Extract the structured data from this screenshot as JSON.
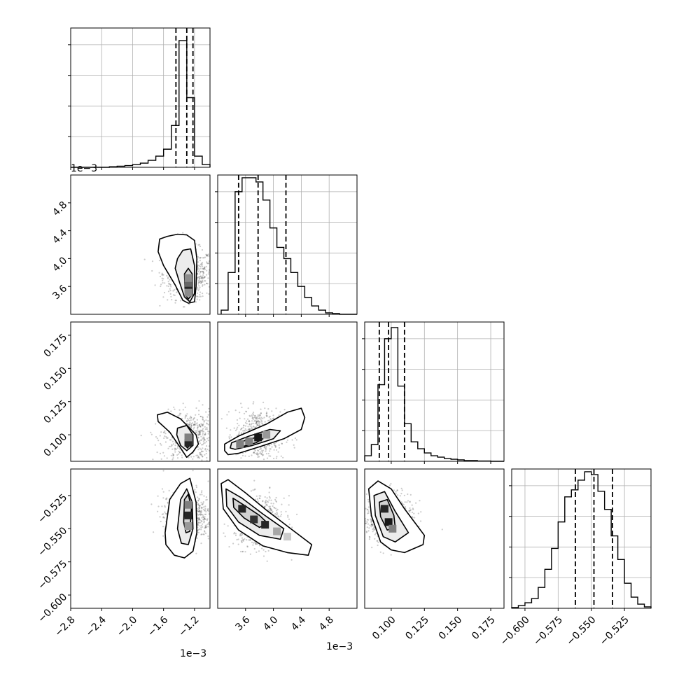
{
  "figure": {
    "type": "corner_plot",
    "offset_labels": {
      "p0": "1e−3",
      "p1": "1e−3"
    },
    "colors": {
      "line": "#000000",
      "grid": "#b0b0b0",
      "scatter": "#333333",
      "quantile": "#000000"
    }
  },
  "chart_data": [
    {
      "type": "histogram",
      "panel": "p0",
      "x_tick_labels": [
        "−2.8",
        "−2.4",
        "−2.0",
        "−1.6",
        "−1.2"
      ],
      "x_ticks": [
        -2.8,
        -2.4,
        -2.0,
        -1.6,
        -1.2
      ],
      "xlim": [
        -2.8,
        -1.0
      ],
      "bins": [
        -2.8,
        -2.7,
        -2.6,
        -2.5,
        -2.4,
        -2.3,
        -2.2,
        -2.1,
        -2.0,
        -1.9,
        -1.8,
        -1.7,
        -1.6,
        -1.5,
        -1.4,
        -1.3,
        -1.2,
        -1.1,
        -1.0
      ],
      "values": [
        0,
        0,
        0,
        0,
        0,
        0.004,
        0.008,
        0.012,
        0.02,
        0.03,
        0.05,
        0.08,
        0.13,
        0.3,
        0.91,
        0.5,
        0.08,
        0.02,
        0
      ],
      "quantiles": [
        -1.44,
        -1.3,
        -1.22
      ],
      "grid": true
    },
    {
      "type": "histogram",
      "panel": "p1",
      "x_tick_labels": [
        "3.6",
        "4.0",
        "4.4",
        "4.8"
      ],
      "x_ticks": [
        3.6,
        4.0,
        4.4,
        4.8
      ],
      "xlim": [
        3.2,
        5.2
      ],
      "bins": [
        3.25,
        3.35,
        3.45,
        3.55,
        3.65,
        3.75,
        3.85,
        3.95,
        4.05,
        4.15,
        4.25,
        4.35,
        4.45,
        4.55,
        4.65,
        4.75,
        4.85,
        4.95
      ],
      "values": [
        0.03,
        0.3,
        0.88,
        0.98,
        0.98,
        0.95,
        0.82,
        0.62,
        0.48,
        0.4,
        0.3,
        0.2,
        0.12,
        0.06,
        0.03,
        0.01,
        0.005,
        0
      ],
      "quantiles": [
        3.5,
        3.78,
        4.18
      ],
      "grid": true
    },
    {
      "type": "histogram",
      "panel": "p2",
      "x_tick_labels": [
        "0.100",
        "0.125",
        "0.150",
        "0.175"
      ],
      "x_ticks": [
        0.1,
        0.125,
        0.15,
        0.175
      ],
      "xlim": [
        0.08,
        0.185
      ],
      "bins": [
        0.08,
        0.085,
        0.09,
        0.095,
        0.1,
        0.105,
        0.11,
        0.115,
        0.12,
        0.125,
        0.13,
        0.135,
        0.14,
        0.145,
        0.15,
        0.155,
        0.16,
        0.165,
        0.17,
        0.175,
        0.18
      ],
      "values": [
        0.04,
        0.12,
        0.55,
        0.88,
        0.96,
        0.54,
        0.27,
        0.14,
        0.09,
        0.06,
        0.04,
        0.03,
        0.02,
        0.015,
        0.01,
        0.005,
        0.005,
        0.002,
        0.002,
        0
      ],
      "quantiles": [
        0.091,
        0.098,
        0.11
      ],
      "grid": true
    },
    {
      "type": "histogram",
      "panel": "p3",
      "x_tick_labels": [
        "−0.600",
        "−0.575",
        "−0.550",
        "−0.525"
      ],
      "x_ticks": [
        -0.6,
        -0.575,
        -0.55,
        -0.525
      ],
      "xlim": [
        -0.61,
        -0.505
      ],
      "bins": [
        -0.61,
        -0.605,
        -0.6,
        -0.595,
        -0.59,
        -0.585,
        -0.58,
        -0.575,
        -0.57,
        -0.565,
        -0.56,
        -0.555,
        -0.55,
        -0.545,
        -0.54,
        -0.535,
        -0.53,
        -0.525,
        -0.52,
        -0.515,
        -0.51,
        -0.505
      ],
      "values": [
        0.005,
        0.02,
        0.04,
        0.07,
        0.15,
        0.28,
        0.43,
        0.62,
        0.8,
        0.85,
        0.92,
        0.98,
        0.96,
        0.84,
        0.71,
        0.52,
        0.35,
        0.18,
        0.08,
        0.03,
        0.01
      ],
      "quantiles": [
        -0.562,
        -0.548,
        -0.534
      ],
      "grid": true
    },
    {
      "type": "scatter",
      "panel": "d10",
      "y_tick_labels": [
        "3.6",
        "4.0",
        "4.4",
        "4.8"
      ],
      "y_ticks": [
        3.6,
        4.0,
        4.4,
        4.8
      ],
      "xlim": [
        -2.8,
        -1.0
      ],
      "ylim": [
        3.2,
        5.2
      ],
      "center": [
        -1.28,
        3.78
      ],
      "contours": [
        [
          [
            -1.65,
            4.28
          ],
          [
            -1.55,
            4.32
          ],
          [
            -1.42,
            4.35
          ],
          [
            -1.3,
            4.34
          ],
          [
            -1.2,
            4.26
          ],
          [
            -1.17,
            4.0
          ],
          [
            -1.18,
            3.6
          ],
          [
            -1.2,
            3.38
          ],
          [
            -1.28,
            3.36
          ],
          [
            -1.35,
            3.4
          ],
          [
            -1.45,
            3.62
          ],
          [
            -1.6,
            3.9
          ],
          [
            -1.67,
            4.1
          ]
        ],
        [
          [
            -1.42,
            4.0
          ],
          [
            -1.35,
            4.12
          ],
          [
            -1.25,
            4.14
          ],
          [
            -1.2,
            3.9
          ],
          [
            -1.2,
            3.5
          ],
          [
            -1.26,
            3.38
          ],
          [
            -1.33,
            3.45
          ],
          [
            -1.4,
            3.68
          ],
          [
            -1.45,
            3.86
          ]
        ],
        [
          [
            -1.33,
            3.78
          ],
          [
            -1.28,
            3.86
          ],
          [
            -1.23,
            3.78
          ],
          [
            -1.23,
            3.48
          ],
          [
            -1.28,
            3.42
          ],
          [
            -1.32,
            3.48
          ]
        ]
      ],
      "density_cells": [
        {
          "x": -1.28,
          "y": 3.58,
          "level": 0.85
        },
        {
          "x": -1.28,
          "y": 3.65,
          "level": 0.6
        },
        {
          "x": -1.28,
          "y": 3.72,
          "level": 0.45
        },
        {
          "x": -1.28,
          "y": 3.51,
          "level": 0.45
        }
      ]
    },
    {
      "type": "scatter",
      "panel": "d20",
      "y_tick_labels": [
        "0.100",
        "0.125",
        "0.150",
        "0.175"
      ],
      "y_ticks": [
        0.1,
        0.125,
        0.15,
        0.175
      ],
      "xlim": [
        -2.8,
        -1.0
      ],
      "ylim": [
        0.08,
        0.185
      ],
      "center": [
        -1.28,
        0.098
      ],
      "contours": [
        [
          [
            -1.68,
            0.115
          ],
          [
            -1.55,
            0.117
          ],
          [
            -1.38,
            0.112
          ],
          [
            -1.18,
            0.1
          ],
          [
            -1.15,
            0.093
          ],
          [
            -1.22,
            0.087
          ],
          [
            -1.3,
            0.083
          ],
          [
            -1.38,
            0.09
          ],
          [
            -1.52,
            0.102
          ],
          [
            -1.67,
            0.11
          ]
        ],
        [
          [
            -1.42,
            0.105
          ],
          [
            -1.3,
            0.107
          ],
          [
            -1.22,
            0.1
          ],
          [
            -1.22,
            0.092
          ],
          [
            -1.3,
            0.088
          ],
          [
            -1.38,
            0.092
          ],
          [
            -1.43,
            0.1
          ]
        ],
        [
          [
            -1.32,
            0.096
          ],
          [
            -1.27,
            0.097
          ],
          [
            -1.25,
            0.093
          ],
          [
            -1.29,
            0.09
          ],
          [
            -1.32,
            0.092
          ]
        ]
      ],
      "density_cells": [
        {
          "x": -1.28,
          "y": 0.094,
          "level": 0.85
        },
        {
          "x": -1.28,
          "y": 0.098,
          "level": 0.5
        }
      ]
    },
    {
      "type": "scatter",
      "panel": "d21",
      "xlim": [
        3.2,
        5.2
      ],
      "ylim": [
        0.08,
        0.185
      ],
      "center": [
        3.8,
        0.1
      ],
      "contours": [
        [
          [
            3.3,
            0.088
          ],
          [
            3.3,
            0.093
          ],
          [
            3.5,
            0.099
          ],
          [
            3.9,
            0.108
          ],
          [
            4.2,
            0.117
          ],
          [
            4.4,
            0.12
          ],
          [
            4.45,
            0.113
          ],
          [
            4.4,
            0.104
          ],
          [
            4.15,
            0.097
          ],
          [
            3.8,
            0.091
          ],
          [
            3.5,
            0.086
          ],
          [
            3.35,
            0.085
          ]
        ],
        [
          [
            3.38,
            0.09
          ],
          [
            3.4,
            0.094
          ],
          [
            3.65,
            0.099
          ],
          [
            3.95,
            0.104
          ],
          [
            4.1,
            0.103
          ],
          [
            4.0,
            0.097
          ],
          [
            3.7,
            0.092
          ],
          [
            3.45,
            0.089
          ]
        ],
        [
          [
            3.48,
            0.092
          ],
          [
            3.55,
            0.095
          ],
          [
            3.75,
            0.098
          ],
          [
            3.85,
            0.097
          ],
          [
            3.75,
            0.094
          ],
          [
            3.55,
            0.091
          ]
        ]
      ],
      "density_cells": [
        {
          "x": 3.52,
          "y": 0.093,
          "level": 0.5
        },
        {
          "x": 3.78,
          "y": 0.098,
          "level": 0.9
        },
        {
          "x": 3.9,
          "y": 0.1,
          "level": 0.4
        },
        {
          "x": 3.65,
          "y": 0.095,
          "level": 0.5
        }
      ]
    },
    {
      "type": "scatter",
      "panel": "d30",
      "x_tick_labels": [
        "−2.8",
        "−2.4",
        "−2.0",
        "−1.6",
        "−1.2"
      ],
      "x_ticks": [
        -2.8,
        -2.4,
        -2.0,
        -1.6,
        -1.2
      ],
      "y_tick_labels": [
        "−0.600",
        "−0.575",
        "−0.550",
        "−0.525"
      ],
      "y_ticks": [
        -0.6,
        -0.575,
        -0.55,
        -0.525
      ],
      "xlim": [
        -2.8,
        -1.0
      ],
      "ylim": [
        -0.61,
        -0.505
      ],
      "center": [
        -1.28,
        -0.54
      ],
      "contours": [
        [
          [
            -1.58,
            -0.553
          ],
          [
            -1.52,
            -0.528
          ],
          [
            -1.38,
            -0.516
          ],
          [
            -1.26,
            -0.512
          ],
          [
            -1.18,
            -0.53
          ],
          [
            -1.17,
            -0.553
          ],
          [
            -1.22,
            -0.567
          ],
          [
            -1.33,
            -0.572
          ],
          [
            -1.46,
            -0.57
          ],
          [
            -1.57,
            -0.562
          ]
        ],
        [
          [
            -1.42,
            -0.55
          ],
          [
            -1.38,
            -0.528
          ],
          [
            -1.3,
            -0.52
          ],
          [
            -1.23,
            -0.53
          ],
          [
            -1.22,
            -0.55
          ],
          [
            -1.28,
            -0.562
          ],
          [
            -1.37,
            -0.561
          ]
        ],
        [
          [
            -1.34,
            -0.545
          ],
          [
            -1.33,
            -0.528
          ],
          [
            -1.28,
            -0.524
          ],
          [
            -1.24,
            -0.535
          ],
          [
            -1.26,
            -0.552
          ],
          [
            -1.31,
            -0.553
          ]
        ]
      ],
      "density_cells": [
        {
          "x": -1.28,
          "y": -0.54,
          "level": 0.85
        },
        {
          "x": -1.28,
          "y": -0.532,
          "level": 0.5
        },
        {
          "x": -1.28,
          "y": -0.548,
          "level": 0.4
        }
      ]
    },
    {
      "type": "scatter",
      "panel": "d31",
      "x_tick_labels": [
        "3.6",
        "4.0",
        "4.4",
        "4.8"
      ],
      "x_ticks": [
        3.6,
        4.0,
        4.4,
        4.8
      ],
      "xlim": [
        3.2,
        5.2
      ],
      "ylim": [
        -0.61,
        -0.505
      ],
      "center": [
        3.8,
        -0.545
      ],
      "contours": [
        [
          [
            3.25,
            -0.516
          ],
          [
            3.35,
            -0.513
          ],
          [
            3.6,
            -0.523
          ],
          [
            3.9,
            -0.536
          ],
          [
            4.3,
            -0.552
          ],
          [
            4.55,
            -0.562
          ],
          [
            4.5,
            -0.57
          ],
          [
            4.2,
            -0.568
          ],
          [
            3.85,
            -0.563
          ],
          [
            3.5,
            -0.551
          ],
          [
            3.28,
            -0.535
          ]
        ],
        [
          [
            3.32,
            -0.52
          ],
          [
            3.55,
            -0.527
          ],
          [
            3.85,
            -0.539
          ],
          [
            4.15,
            -0.55
          ],
          [
            4.1,
            -0.558
          ],
          [
            3.8,
            -0.555
          ],
          [
            3.5,
            -0.545
          ],
          [
            3.33,
            -0.533
          ]
        ],
        [
          [
            3.42,
            -0.527
          ],
          [
            3.6,
            -0.533
          ],
          [
            3.8,
            -0.54
          ],
          [
            3.92,
            -0.546
          ],
          [
            3.8,
            -0.549
          ],
          [
            3.58,
            -0.542
          ],
          [
            3.43,
            -0.534
          ]
        ]
      ],
      "density_cells": [
        {
          "x": 3.55,
          "y": -0.535,
          "level": 0.85
        },
        {
          "x": 3.72,
          "y": -0.543,
          "level": 0.8
        },
        {
          "x": 3.88,
          "y": -0.547,
          "level": 0.85
        },
        {
          "x": 4.05,
          "y": -0.552,
          "level": 0.35
        },
        {
          "x": 4.2,
          "y": -0.556,
          "level": 0.2
        }
      ]
    },
    {
      "type": "scatter",
      "panel": "d32",
      "x_tick_labels": [
        "0.100",
        "0.125",
        "0.150",
        "0.175"
      ],
      "x_ticks": [
        0.1,
        0.125,
        0.15,
        0.175
      ],
      "xlim": [
        0.08,
        0.185
      ],
      "ylim": [
        -0.61,
        -0.505
      ],
      "center": [
        0.098,
        -0.542
      ],
      "contours": [
        [
          [
            0.083,
            -0.52
          ],
          [
            0.09,
            -0.514
          ],
          [
            0.1,
            -0.52
          ],
          [
            0.11,
            -0.535
          ],
          [
            0.125,
            -0.555
          ],
          [
            0.124,
            -0.562
          ],
          [
            0.11,
            -0.568
          ],
          [
            0.1,
            -0.566
          ],
          [
            0.092,
            -0.56
          ],
          [
            0.085,
            -0.54
          ]
        ],
        [
          [
            0.087,
            -0.525
          ],
          [
            0.095,
            -0.522
          ],
          [
            0.103,
            -0.537
          ],
          [
            0.113,
            -0.553
          ],
          [
            0.103,
            -0.56
          ],
          [
            0.094,
            -0.556
          ],
          [
            0.088,
            -0.54
          ]
        ],
        [
          [
            0.091,
            -0.53
          ],
          [
            0.097,
            -0.528
          ],
          [
            0.102,
            -0.54
          ],
          [
            0.103,
            -0.549
          ],
          [
            0.097,
            -0.551
          ],
          [
            0.092,
            -0.541
          ]
        ]
      ],
      "density_cells": [
        {
          "x": 0.095,
          "y": -0.535,
          "level": 0.85
        },
        {
          "x": 0.098,
          "y": -0.545,
          "level": 0.9
        },
        {
          "x": 0.101,
          "y": -0.55,
          "level": 0.5
        }
      ]
    }
  ]
}
